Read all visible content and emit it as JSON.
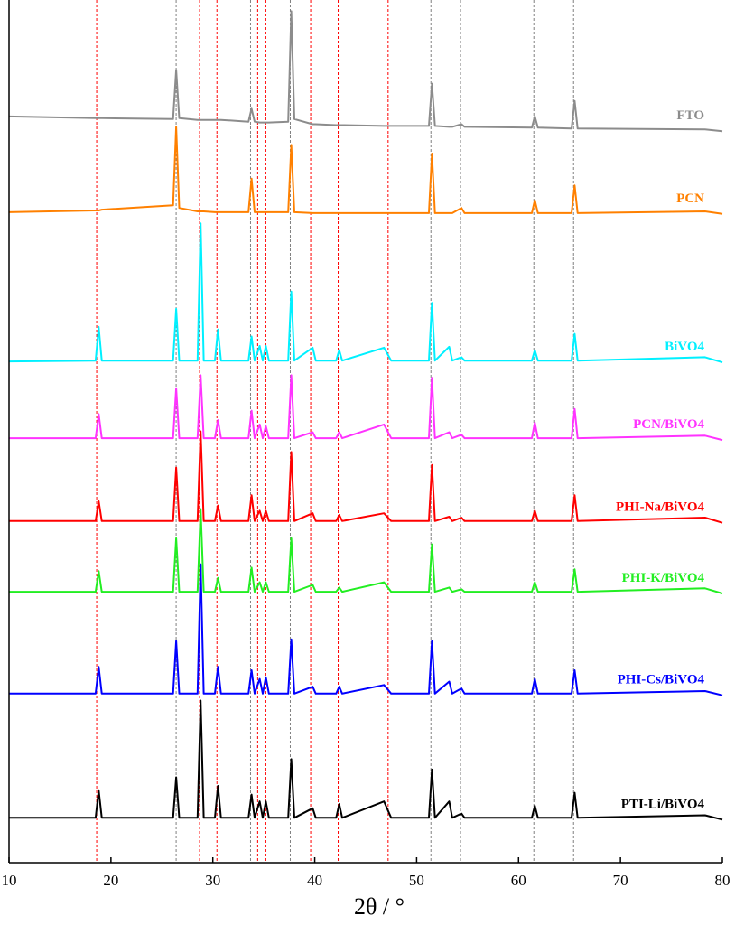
{
  "chart_data": {
    "type": "line",
    "x_label": "2θ / °",
    "xlim": [
      10,
      80
    ],
    "xticks": [
      10,
      20,
      30,
      40,
      50,
      60,
      70,
      80
    ],
    "ylim": [
      0,
      100
    ],
    "x": [
      10,
      18.5,
      18.8,
      19.1,
      26.1,
      26.4,
      26.7,
      28.5,
      28.8,
      29.1,
      30.2,
      30.5,
      30.8,
      33.5,
      33.8,
      34.1,
      34.6,
      34.9,
      35.2,
      35.5,
      37.4,
      37.7,
      38.0,
      39.8,
      40.1,
      42.1,
      42.4,
      42.7,
      46.8,
      47.5,
      51.2,
      51.5,
      51.8,
      53.2,
      53.5,
      54.4,
      54.7,
      61.3,
      61.6,
      61.9,
      65.2,
      65.5,
      65.8,
      78.3,
      80
    ],
    "series": [
      {
        "name": "FTO",
        "color": "#8c8c8c",
        "values": [
          86.5,
          86.3,
          86.3,
          86.3,
          86.2,
          91.9,
          86.3,
          86.1,
          86.1,
          86.1,
          86.1,
          86.1,
          86.1,
          85.9,
          87.4,
          85.9,
          85.8,
          85.8,
          85.8,
          85.8,
          85.9,
          98.7,
          86.2,
          85.6,
          85.6,
          85.5,
          85.5,
          85.5,
          85.4,
          85.4,
          85.4,
          90.3,
          85.4,
          85.3,
          85.3,
          85.6,
          85.3,
          85.2,
          86.5,
          85.2,
          85.1,
          88.3,
          85.1,
          85.0,
          84.8
        ]
      },
      {
        "name": "PCN",
        "color": "#ff8000",
        "values": [
          75.4,
          75.6,
          75.6,
          75.7,
          76.2,
          85.3,
          75.9,
          75.5,
          75.5,
          75.5,
          75.4,
          75.4,
          75.4,
          75.4,
          79.3,
          75.4,
          75.4,
          75.4,
          75.4,
          75.4,
          75.4,
          83.2,
          75.4,
          75.3,
          75.3,
          75.3,
          75.3,
          75.3,
          75.3,
          75.3,
          75.3,
          82.2,
          75.3,
          75.3,
          75.3,
          75.9,
          75.3,
          75.3,
          76.8,
          75.3,
          75.3,
          78.5,
          75.3,
          75.5,
          75.2
        ]
      },
      {
        "name": "BiVO4",
        "color": "#00f0ff",
        "values": [
          58.1,
          58.2,
          62.1,
          58.2,
          58.2,
          64.2,
          58.2,
          58.2,
          74.1,
          58.2,
          58.2,
          61.8,
          58.2,
          58.2,
          61.0,
          58.2,
          59.9,
          58.2,
          59.9,
          58.2,
          58.2,
          66.2,
          58.2,
          59.7,
          58.2,
          58.2,
          59.4,
          58.2,
          59.7,
          58.2,
          58.2,
          64.9,
          58.2,
          59.8,
          58.2,
          58.6,
          58.2,
          58.2,
          59.4,
          58.2,
          58.2,
          61.3,
          58.2,
          58.6,
          58.0
        ]
      },
      {
        "name": "PCN/BiVO4",
        "color": "#ff33ff",
        "values": [
          49.2,
          49.2,
          52.0,
          49.2,
          49.2,
          55.0,
          49.2,
          49.2,
          56.5,
          49.2,
          49.2,
          51.3,
          49.2,
          49.2,
          52.4,
          49.2,
          50.8,
          49.2,
          50.6,
          49.2,
          49.2,
          56.5,
          49.2,
          49.9,
          49.2,
          49.2,
          49.9,
          49.2,
          50.8,
          49.2,
          49.2,
          56.2,
          49.2,
          49.9,
          49.2,
          49.6,
          49.2,
          49.2,
          51.0,
          49.2,
          49.2,
          52.6,
          49.2,
          49.5,
          49.0
        ]
      },
      {
        "name": "PHI-Na/BiVO4",
        "color": "#ff0000",
        "values": [
          39.6,
          39.6,
          41.9,
          39.6,
          39.6,
          45.8,
          39.6,
          39.6,
          50.0,
          39.6,
          39.6,
          41.4,
          39.6,
          39.6,
          42.6,
          39.6,
          40.8,
          39.6,
          40.8,
          39.6,
          39.6,
          47.6,
          39.6,
          40.5,
          39.6,
          39.6,
          40.3,
          39.6,
          40.5,
          39.6,
          39.6,
          46.1,
          39.6,
          40.1,
          39.6,
          40.0,
          39.6,
          39.6,
          40.8,
          39.6,
          39.6,
          42.6,
          39.6,
          40.0,
          39.4
        ]
      },
      {
        "name": "PHI-K/BiVO4",
        "color": "#22ee22",
        "values": [
          31.4,
          31.4,
          33.8,
          31.4,
          31.4,
          37.6,
          31.4,
          31.4,
          41.0,
          31.4,
          31.4,
          33.0,
          31.4,
          31.4,
          34.2,
          31.4,
          32.5,
          31.4,
          32.5,
          31.4,
          31.4,
          37.6,
          31.4,
          32.2,
          31.4,
          31.4,
          31.9,
          31.4,
          32.5,
          31.4,
          31.4,
          36.9,
          31.4,
          31.9,
          31.4,
          31.7,
          31.4,
          31.4,
          32.5,
          31.4,
          31.4,
          34.0,
          31.4,
          31.8,
          31.2
        ]
      },
      {
        "name": "PHI-Cs/BiVO4",
        "color": "#0000ff",
        "values": [
          19.6,
          19.6,
          22.7,
          19.6,
          19.6,
          25.7,
          19.6,
          19.6,
          34.6,
          19.6,
          19.6,
          22.7,
          19.6,
          19.6,
          22.3,
          19.6,
          21.3,
          19.6,
          21.5,
          19.6,
          19.6,
          25.9,
          19.6,
          20.4,
          19.6,
          19.6,
          20.4,
          19.6,
          20.6,
          19.6,
          19.6,
          25.7,
          19.6,
          21.0,
          19.6,
          20.2,
          19.6,
          19.6,
          21.3,
          19.6,
          19.6,
          22.3,
          19.6,
          19.9,
          19.4
        ]
      },
      {
        "name": "PTI-Li/BiVO4",
        "color": "#000000",
        "values": [
          5.2,
          5.2,
          8.4,
          5.2,
          5.2,
          9.9,
          5.2,
          5.2,
          18.8,
          5.2,
          5.2,
          8.9,
          5.2,
          5.2,
          7.9,
          5.2,
          7.1,
          5.2,
          7.1,
          5.2,
          5.2,
          12.0,
          5.2,
          6.3,
          5.2,
          5.2,
          6.8,
          5.2,
          7.1,
          5.2,
          5.2,
          10.8,
          5.2,
          7.1,
          5.2,
          5.7,
          5.2,
          5.2,
          6.6,
          5.2,
          5.2,
          8.1,
          5.2,
          5.5,
          5.0
        ]
      }
    ],
    "reference_lines": [
      {
        "color": "#ff0000",
        "x": [
          18.6,
          28.7,
          30.4,
          34.4,
          35.2,
          39.6,
          42.3,
          47.2
        ]
      },
      {
        "color": "#808080",
        "x": [
          26.4,
          33.7,
          37.6,
          51.4,
          54.3,
          61.5,
          65.4
        ]
      }
    ]
  }
}
